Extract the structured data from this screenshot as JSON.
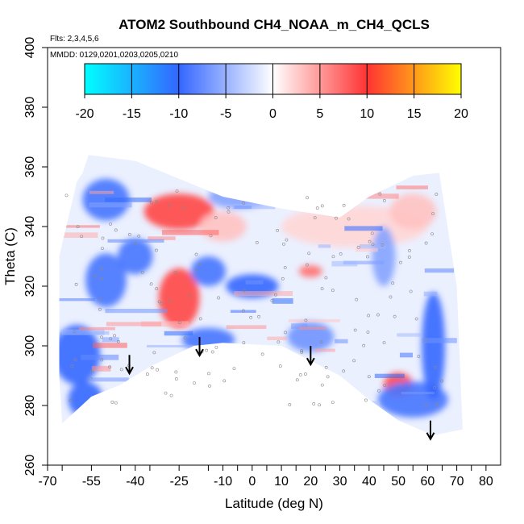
{
  "chart_data": {
    "type": "heatmap",
    "title": "ATOM2 Southbound CH4_NOAA_m_CH4_QCLS",
    "subtitle_flights": "Flts: 2,3,4,5,6",
    "subtitle_dates": "MMDD: 0129,0201,0203,0205,0210",
    "xlabel": "Latitude (deg N)",
    "ylabel": "Theta (C)",
    "xlim": [
      -70,
      85
    ],
    "ylim": [
      260,
      400
    ],
    "x_ticks": [
      -70,
      -55,
      -40,
      -25,
      -10,
      0,
      10,
      20,
      30,
      40,
      50,
      60,
      70,
      80
    ],
    "x_tick_labels": [
      "-70",
      "-55",
      "-40",
      "-25",
      "-10",
      "0",
      "10",
      "20",
      "30",
      "40",
      "50",
      "60",
      "70",
      "80"
    ],
    "y_ticks": [
      260,
      280,
      300,
      320,
      340,
      360,
      380,
      400
    ],
    "y_tick_labels": [
      "260",
      "280",
      "300",
      "320",
      "340",
      "360",
      "380",
      "400"
    ],
    "colorbar": {
      "range": [
        -20,
        20
      ],
      "ticks": [
        -20,
        -15,
        -10,
        -5,
        0,
        5,
        10,
        15,
        20
      ],
      "tick_labels": [
        "-20",
        "-15",
        "-10",
        "-5",
        "0",
        "5",
        "10",
        "15",
        "20"
      ],
      "colors": [
        "#00ffff",
        "#3366ff",
        "#ffffff",
        "#ff3333",
        "#ffff00"
      ]
    },
    "coverage": {
      "top": [
        [
          -58,
          358
        ],
        [
          -56,
          364
        ],
        [
          -40,
          362
        ],
        [
          -25,
          356
        ],
        [
          -10,
          350
        ],
        [
          10,
          346
        ],
        [
          30,
          343
        ],
        [
          40,
          350
        ],
        [
          55,
          357
        ],
        [
          64,
          358
        ]
      ],
      "right": [
        [
          64,
          358
        ],
        [
          70,
          320
        ],
        [
          72,
          272
        ]
      ],
      "bottom": [
        [
          72,
          272
        ],
        [
          62,
          270
        ],
        [
          50,
          275
        ],
        [
          40,
          282
        ],
        [
          30,
          290
        ],
        [
          20,
          295
        ],
        [
          10,
          300
        ],
        [
          -10,
          301
        ],
        [
          -20,
          300
        ],
        [
          -35,
          293
        ],
        [
          -45,
          287
        ],
        [
          -55,
          283
        ],
        [
          -65,
          274
        ]
      ],
      "left": [
        [
          -65,
          274
        ],
        [
          -66,
          290
        ],
        [
          -66,
          330
        ],
        [
          -60,
          355
        ],
        [
          -58,
          358
        ]
      ]
    },
    "anomalies": [
      {
        "lat": -25,
        "theta": 345,
        "value": 9,
        "rx": 12,
        "ry": 6
      },
      {
        "lat": -25,
        "theta": 316,
        "value": 9,
        "rx": 7,
        "ry": 10
      },
      {
        "lat": -10,
        "theta": 340,
        "value": 3,
        "rx": 8,
        "ry": 5
      },
      {
        "lat": 50,
        "theta": 287,
        "value": 9,
        "rx": 5,
        "ry": 4
      },
      {
        "lat": 20,
        "theta": 325,
        "value": 7,
        "rx": 4,
        "ry": 2
      },
      {
        "lat": 35,
        "theta": 340,
        "value": 2,
        "rx": 25,
        "ry": 7
      },
      {
        "lat": 55,
        "theta": 345,
        "value": 3,
        "rx": 8,
        "ry": 6
      },
      {
        "lat": -60,
        "theta": 297,
        "value": -10,
        "rx": 8,
        "ry": 10
      },
      {
        "lat": -57,
        "theta": 282,
        "value": -10,
        "rx": 6,
        "ry": 6
      },
      {
        "lat": -50,
        "theta": 322,
        "value": -9,
        "rx": 7,
        "ry": 9
      },
      {
        "lat": -50,
        "theta": 349,
        "value": -9,
        "rx": 8,
        "ry": 7
      },
      {
        "lat": -40,
        "theta": 330,
        "value": -9,
        "rx": 6,
        "ry": 6
      },
      {
        "lat": -15,
        "theta": 302,
        "value": -9,
        "rx": 9,
        "ry": 4
      },
      {
        "lat": -15,
        "theta": 325,
        "value": -9,
        "rx": 6,
        "ry": 5
      },
      {
        "lat": 0,
        "theta": 320,
        "value": -10,
        "rx": 9,
        "ry": 4
      },
      {
        "lat": 20,
        "theta": 303,
        "value": -7,
        "rx": 8,
        "ry": 5
      },
      {
        "lat": 55,
        "theta": 282,
        "value": -9,
        "rx": 12,
        "ry": 6
      },
      {
        "lat": 62,
        "theta": 300,
        "value": -10,
        "rx": 4,
        "ry": 18
      },
      {
        "lat": 45,
        "theta": 330,
        "value": -6,
        "rx": 4,
        "ry": 10
      },
      {
        "lat": -5,
        "theta": 350,
        "value": -6,
        "rx": 10,
        "ry": 4
      }
    ],
    "arrows": [
      {
        "lat": -42,
        "theta": 291
      },
      {
        "lat": -18,
        "theta": 297
      },
      {
        "lat": 20,
        "theta": 294
      },
      {
        "lat": 61,
        "theta": 269
      }
    ],
    "samples_note": "",
    "grid": false,
    "legend": "top"
  }
}
